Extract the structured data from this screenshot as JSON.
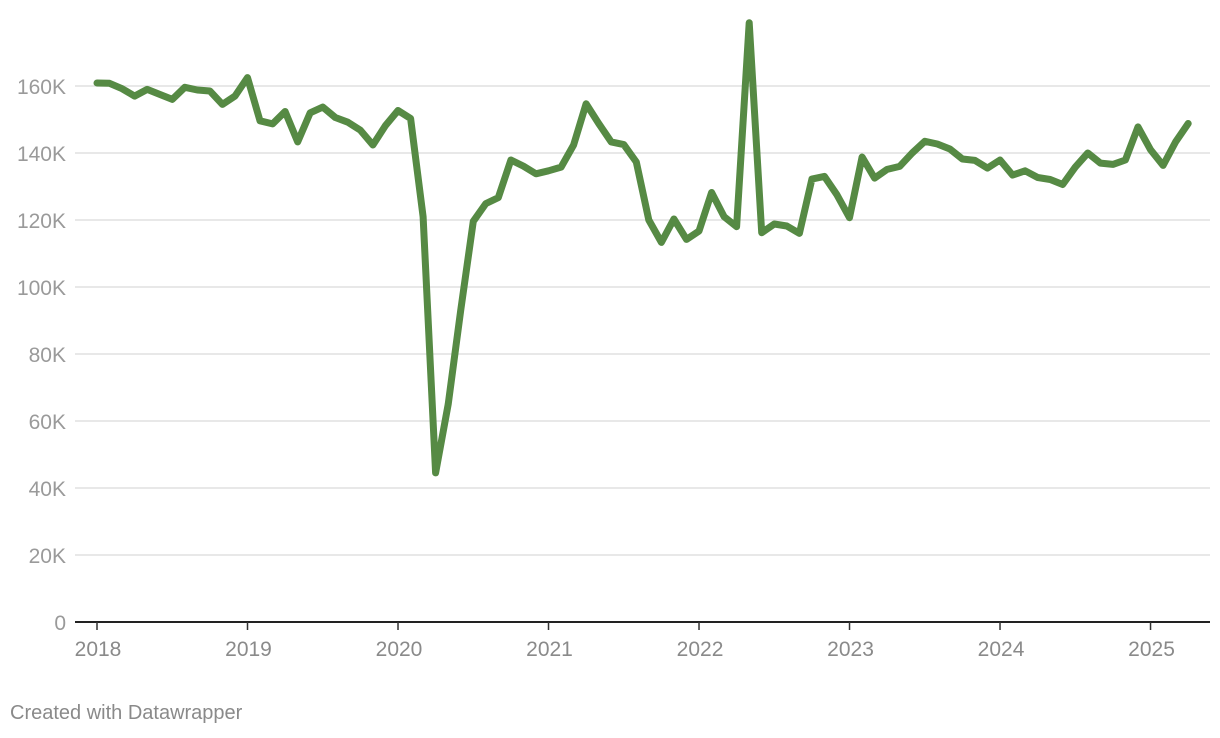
{
  "footer": {
    "credit": "Created with Datawrapper"
  },
  "chart_data": {
    "type": "line",
    "title": "",
    "xlabel": "",
    "ylabel": "",
    "ylim": [
      0,
      180000
    ],
    "ytick_values": [
      0,
      20000,
      40000,
      60000,
      80000,
      100000,
      120000,
      140000,
      160000
    ],
    "ytick_labels": [
      "0",
      "20K",
      "40K",
      "60K",
      "80K",
      "100K",
      "120K",
      "140K",
      "160K"
    ],
    "xtick_labels": [
      "2018",
      "2019",
      "2020",
      "2021",
      "2022",
      "2023",
      "2024",
      "2025"
    ],
    "x_start": "2018-01",
    "grid": true,
    "colors": {
      "line": "#568a44",
      "grid": "#e0e0e0",
      "axis": "#222222"
    },
    "series": [
      {
        "x": [
          "2018-01",
          "2018-02",
          "2018-03",
          "2018-04",
          "2018-05",
          "2018-06",
          "2018-07",
          "2018-08",
          "2018-09",
          "2018-10",
          "2018-11",
          "2018-12",
          "2019-01",
          "2019-02",
          "2019-03",
          "2019-04",
          "2019-05",
          "2019-06",
          "2019-07",
          "2019-08",
          "2019-09",
          "2019-10",
          "2019-11",
          "2019-12",
          "2020-01",
          "2020-02",
          "2020-03",
          "2020-04",
          "2020-05",
          "2020-06",
          "2020-07",
          "2020-08",
          "2020-09",
          "2020-10",
          "2020-11",
          "2020-12",
          "2021-01",
          "2021-02",
          "2021-03",
          "2021-04",
          "2021-05",
          "2021-06",
          "2021-07",
          "2021-08",
          "2021-09",
          "2021-10",
          "2021-11",
          "2021-12",
          "2022-01",
          "2022-02",
          "2022-03",
          "2022-04",
          "2022-05",
          "2022-06",
          "2022-07",
          "2022-08",
          "2022-09",
          "2022-10",
          "2022-11",
          "2022-12",
          "2023-01",
          "2023-02",
          "2023-03",
          "2023-04",
          "2023-05",
          "2023-06",
          "2023-07",
          "2023-08",
          "2023-09",
          "2023-10",
          "2023-11",
          "2023-12",
          "2024-01",
          "2024-02",
          "2024-03",
          "2024-04",
          "2024-05",
          "2024-06",
          "2024-07",
          "2024-08",
          "2024-09",
          "2024-10",
          "2024-11",
          "2024-12",
          "2025-01",
          "2025-02",
          "2025-03",
          "2025-04"
        ],
        "values": [
          160900,
          160800,
          159200,
          157000,
          159000,
          157500,
          156000,
          159600,
          158800,
          158500,
          154500,
          157000,
          162500,
          149600,
          148700,
          152400,
          143300,
          152000,
          153700,
          150600,
          149200,
          146800,
          142400,
          148200,
          152700,
          150300,
          121000,
          44500,
          65000,
          93000,
          119600,
          124900,
          126700,
          137900,
          136100,
          133800,
          134700,
          135800,
          142400,
          154700,
          148800,
          143300,
          142500,
          137300,
          120000,
          113300,
          120300,
          114200,
          116700,
          128200,
          121000,
          118000,
          178900,
          116200,
          118800,
          118200,
          116000,
          132200,
          133000,
          127500,
          120700,
          138800,
          132500,
          135100,
          136000,
          140000,
          143500,
          142700,
          141200,
          138200,
          137800,
          135500,
          137900,
          133400,
          134700,
          132700,
          132100,
          130600,
          135800,
          140000,
          137000,
          136600,
          137900,
          147800,
          141000,
          136300,
          143300,
          148800
        ]
      }
    ]
  }
}
